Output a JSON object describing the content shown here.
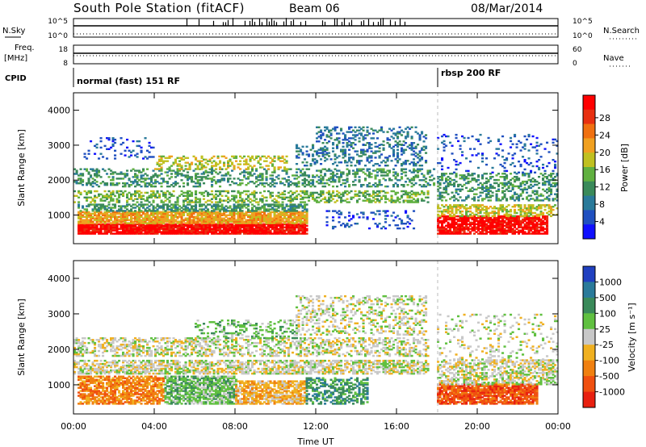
{
  "header": {
    "station": "South Pole Station (fitACF)",
    "beam": "Beam 06",
    "date": "08/Mar/2014"
  },
  "summary": {
    "nsky_label": "N.Sky",
    "nsearch_label": "N.Search",
    "noise_tick_high": "10^5",
    "noise_tick_low": "10^0",
    "freq_label": "Freq.",
    "freq_unit": "[MHz]",
    "freq_tick_high": "18",
    "freq_tick_low": "8",
    "nave_label": "Nave",
    "nave_tick_high": "60",
    "nave_tick_low": "0",
    "cpid_label": "CPID",
    "cpid_modes": [
      {
        "name": "normal (fast) 151 RF",
        "start_hour": 0
      },
      {
        "name": "rbsp 200 RF",
        "start_hour": 18
      }
    ]
  },
  "chart_data": [
    {
      "type": "heatmap",
      "name": "power",
      "ylabel": "Slant Range [km]",
      "xlabel": "",
      "ylim": [
        180,
        4500
      ],
      "yticks": [
        "1000",
        "2000",
        "3000",
        "4000"
      ],
      "x_ticks": [
        "00:00",
        "04:00",
        "08:00",
        "12:00",
        "16:00",
        "20:00",
        "00:00"
      ],
      "colorbar_label": "Power [dB]",
      "colorbar_ticks": [
        "4",
        "8",
        "12",
        "16",
        "20",
        "24",
        "28"
      ],
      "colors": [
        "#1010ff",
        "#2050c0",
        "#2a7a9a",
        "#3a8a5a",
        "#60b040",
        "#c0c020",
        "#f0a020",
        "#f07010",
        "#e83010",
        "#ff0000"
      ],
      "bands": [
        {
          "t0": 0.2,
          "t1": 11.5,
          "r0": 450,
          "r1": 750,
          "level": 9,
          "density": 0.95
        },
        {
          "t0": 0.2,
          "t1": 11.5,
          "r0": 750,
          "r1": 1100,
          "level": 6,
          "density": 0.85
        },
        {
          "t0": 0.2,
          "t1": 11.5,
          "r0": 1100,
          "r1": 1300,
          "level": 3,
          "density": 0.6
        },
        {
          "t0": 0.0,
          "t1": 17.5,
          "r0": 1350,
          "r1": 1700,
          "level": 4,
          "density": 0.45
        },
        {
          "t0": 0.0,
          "t1": 17.8,
          "r0": 1800,
          "r1": 2300,
          "level": 3,
          "density": 0.35
        },
        {
          "t0": 4.0,
          "t1": 10.5,
          "r0": 2300,
          "r1": 2700,
          "level": 5,
          "density": 0.35
        },
        {
          "t0": 11.0,
          "t1": 17.5,
          "r0": 2400,
          "r1": 3000,
          "level": 2,
          "density": 0.3
        },
        {
          "t0": 12.0,
          "t1": 17.5,
          "r0": 3000,
          "r1": 3500,
          "level": 2,
          "density": 0.25
        },
        {
          "t0": 0.5,
          "t1": 4.0,
          "r0": 2600,
          "r1": 3200,
          "level": 1,
          "density": 0.15
        },
        {
          "t0": 12.5,
          "t1": 16.8,
          "r0": 600,
          "r1": 1100,
          "level": 1,
          "density": 0.2
        },
        {
          "t0": 18.0,
          "t1": 23.5,
          "r0": 450,
          "r1": 950,
          "level": 9,
          "density": 0.85
        },
        {
          "t0": 18.0,
          "t1": 24.0,
          "r0": 950,
          "r1": 1300,
          "level": 5,
          "density": 0.55
        },
        {
          "t0": 18.0,
          "t1": 24.0,
          "r0": 1400,
          "r1": 2200,
          "level": 3,
          "density": 0.4
        },
        {
          "t0": 18.0,
          "t1": 24.0,
          "r0": 2200,
          "r1": 3300,
          "level": 1,
          "density": 0.12
        }
      ]
    },
    {
      "type": "heatmap",
      "name": "velocity",
      "ylabel": "Slant Range [km]",
      "xlabel": "Time UT",
      "ylim": [
        180,
        4500
      ],
      "yticks": [
        "1000",
        "2000",
        "3000",
        "4000"
      ],
      "x_ticks": [
        "00:00",
        "04:00",
        "08:00",
        "12:00",
        "16:00",
        "20:00",
        "00:00"
      ],
      "colorbar_label": "Velocity [m s⁻¹]",
      "colorbar_ticks": [
        "1000",
        "500",
        "100",
        "25",
        "-25",
        "-100",
        "-500",
        "-1000"
      ],
      "colors": [
        "#2040c0",
        "#2a7a9a",
        "#3a8a5a",
        "#60c040",
        "#c8c8c8",
        "#f0b020",
        "#f08010",
        "#f05010",
        "#e82010"
      ],
      "bands": [
        {
          "t0": 0.2,
          "t1": 4.5,
          "r0": 450,
          "r1": 1250,
          "level": 6,
          "density": 0.75
        },
        {
          "t0": 4.5,
          "t1": 8.0,
          "r0": 450,
          "r1": 1250,
          "level": 3,
          "density": 0.75
        },
        {
          "t0": 8.0,
          "t1": 11.5,
          "r0": 450,
          "r1": 1100,
          "level": 5,
          "density": 0.75
        },
        {
          "t0": 11.5,
          "t1": 14.5,
          "r0": 450,
          "r1": 1200,
          "level": 2,
          "density": 0.55
        },
        {
          "t0": 0.0,
          "t1": 17.5,
          "r0": 1300,
          "r1": 1700,
          "level": 4,
          "density": 0.6
        },
        {
          "t0": 0.0,
          "t1": 17.5,
          "r0": 1800,
          "r1": 2300,
          "level": 4,
          "density": 0.45
        },
        {
          "t0": 6.0,
          "t1": 11.0,
          "r0": 2300,
          "r1": 2800,
          "level": 3,
          "density": 0.3
        },
        {
          "t0": 11.0,
          "t1": 17.5,
          "r0": 2400,
          "r1": 3500,
          "level": 4,
          "density": 0.3
        },
        {
          "t0": 18.0,
          "t1": 23.0,
          "r0": 450,
          "r1": 1000,
          "level": 7,
          "density": 0.85
        },
        {
          "t0": 18.0,
          "t1": 24.0,
          "r0": 1000,
          "r1": 1700,
          "level": 4,
          "density": 0.55
        },
        {
          "t0": 18.0,
          "t1": 24.0,
          "r0": 1700,
          "r1": 3000,
          "level": 4,
          "density": 0.15
        }
      ]
    }
  ]
}
